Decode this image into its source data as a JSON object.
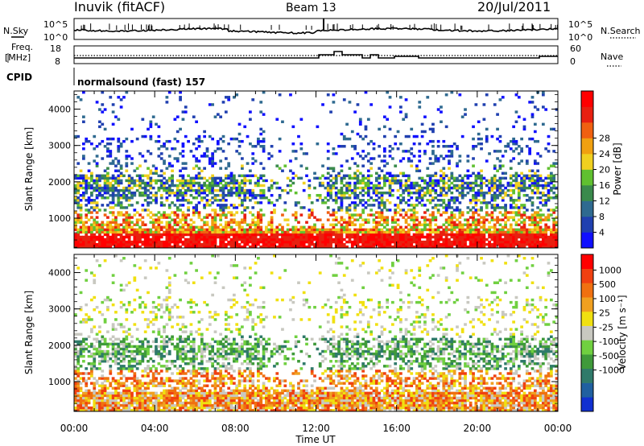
{
  "header": {
    "station": "Inuvik (fitACF)",
    "beam": "Beam 13",
    "date": "20/Jul/2011"
  },
  "noise_panel": {
    "left_label": "N.Sky",
    "right_label": "N.Search",
    "left_ticks": [
      "10^5",
      "10^0"
    ],
    "right_ticks": [
      "10^5",
      "10^0"
    ]
  },
  "freq_panel": {
    "left_label_1": "Freq.",
    "left_label_2": "[MHz]",
    "right_label": "Nave",
    "left_ticks": [
      "18",
      "8"
    ],
    "right_ticks": [
      "60",
      "0"
    ]
  },
  "cpid": {
    "label": "CPID",
    "value": "normalsound (fast) 157"
  },
  "x_axis": {
    "label": "Time UT",
    "ticks": [
      "00:00",
      "04:00",
      "08:00",
      "12:00",
      "16:00",
      "20:00",
      "00:00"
    ]
  },
  "chart_data": [
    {
      "type": "heatmap",
      "name": "power",
      "ylabel": "Slant Range [km]",
      "yticks": [
        1000,
        2000,
        3000,
        4000
      ],
      "ylim": [
        180,
        4500
      ],
      "xlim": [
        0,
        24
      ],
      "colorbar": {
        "label": "Power [dB]",
        "ticks": [
          "4",
          "8",
          "12",
          "16",
          "20",
          "24",
          "28"
        ],
        "colors": [
          "#1010ff",
          "#2040b0",
          "#2f6a90",
          "#3a8a4c",
          "#60c030",
          "#f0d020",
          "#f0a010",
          "#f06010",
          "#e82010",
          "#ff0000"
        ]
      }
    },
    {
      "type": "heatmap",
      "name": "velocity",
      "ylabel": "Slant Range [km]",
      "yticks": [
        1000,
        2000,
        3000,
        4000
      ],
      "ylim": [
        180,
        4500
      ],
      "xlim": [
        0,
        24
      ],
      "colorbar": {
        "label": "Velocity [m s⁻¹]",
        "ticks": [
          "1000",
          "500",
          "100",
          "25",
          "-25",
          "-100",
          "-500",
          "-1000"
        ],
        "colors": [
          "#1030d0",
          "#2060a0",
          "#2f7a6a",
          "#3f9a3a",
          "#70d040",
          "#c8c8c0",
          "#f0e010",
          "#f0a020",
          "#f07010",
          "#f04010",
          "#ff0000"
        ]
      }
    }
  ]
}
